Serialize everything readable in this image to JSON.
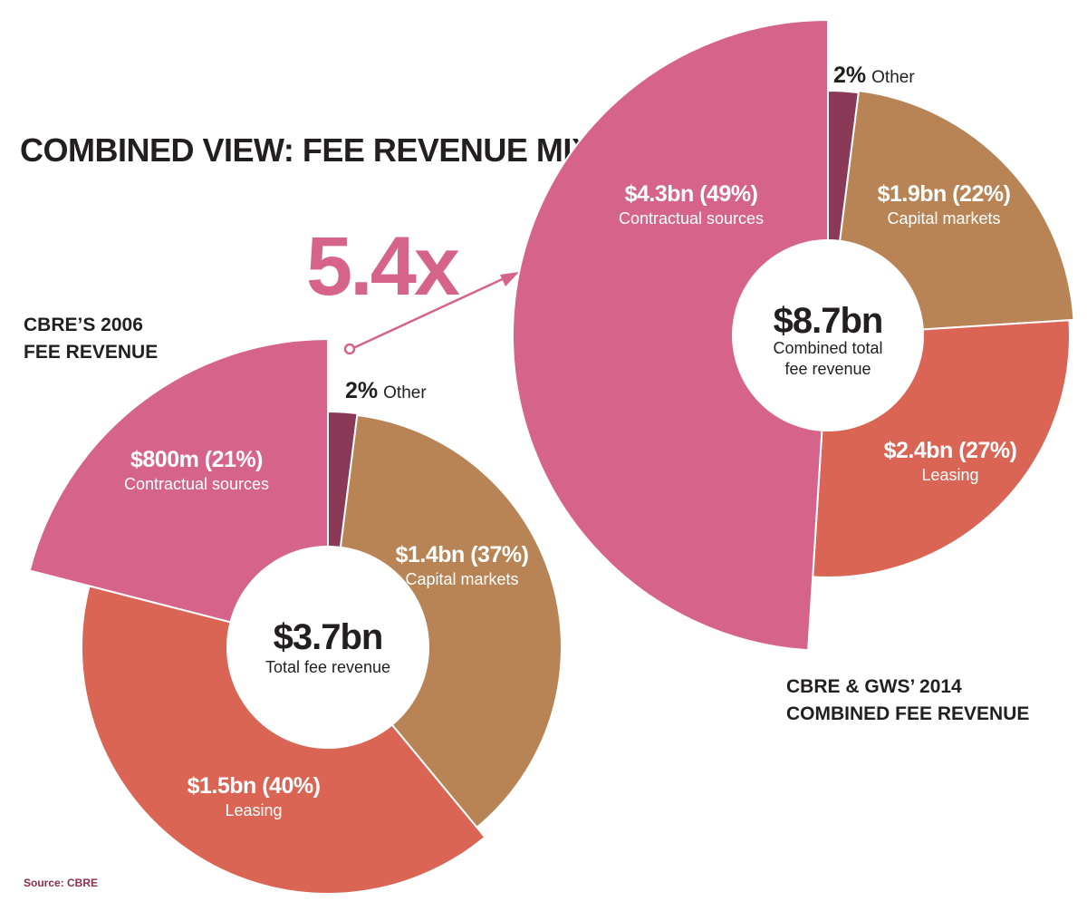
{
  "title": "COMBINED VIEW: FEE REVENUE MIX",
  "multiplier": "5.4x",
  "source": "Source: CBRE",
  "colors": {
    "Contractual sources": "#d6638a",
    "Capital markets": "#b88455",
    "Leasing": "#da6555",
    "Other": "#8a3a57",
    "accent": "#d6638a",
    "source_text": "#8b2e4a"
  },
  "chart_data": [
    {
      "type": "pie",
      "title_lines": [
        "CBRE’S 2006",
        "FEE REVENUE"
      ],
      "center_value": "$3.7bn",
      "center_lines": [
        "Total fee revenue"
      ],
      "slices": [
        {
          "category": "Other",
          "value": 2,
          "value_label": "2%"
        },
        {
          "category": "Capital markets",
          "value": 37,
          "value_label": "$1.4bn (37%)"
        },
        {
          "category": "Leasing",
          "value": 40,
          "value_label": "$1.5bn (40%)"
        },
        {
          "category": "Contractual sources",
          "value": 21,
          "value_label": "$800m (21%)"
        }
      ]
    },
    {
      "type": "pie",
      "title_lines": [
        "CBRE & GWS’ 2014",
        "COMBINED FEE REVENUE"
      ],
      "center_value": "$8.7bn",
      "center_lines": [
        "Combined total",
        "fee revenue"
      ],
      "slices": [
        {
          "category": "Other",
          "value": 2,
          "value_label": "2%"
        },
        {
          "category": "Capital markets",
          "value": 22,
          "value_label": "$1.9bn (22%)"
        },
        {
          "category": "Leasing",
          "value": 27,
          "value_label": "$2.4bn (27%)"
        },
        {
          "category": "Contractual sources",
          "value": 49,
          "value_label": "$4.3bn (49%)"
        }
      ]
    }
  ]
}
